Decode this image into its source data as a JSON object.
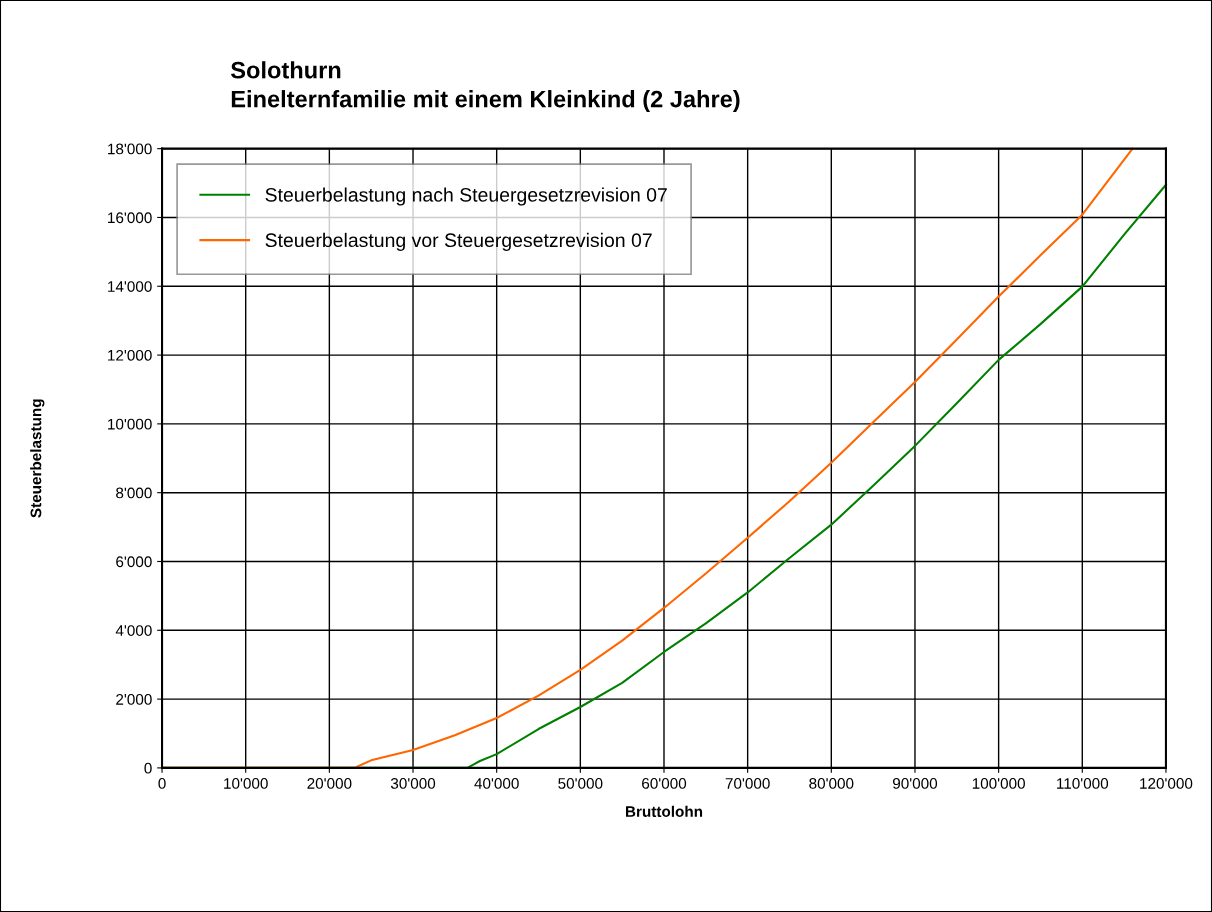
{
  "chart_data": {
    "type": "line",
    "title": "Solothurn\nEinelternfamilie mit einem Kleinkind (2 Jahre)",
    "xlabel": "Bruttolohn",
    "ylabel": "Steuerbelastung",
    "xlim": [
      0,
      120000
    ],
    "ylim": [
      0,
      18000
    ],
    "xticks": [
      0,
      {
        "value": 10000,
        "label": "10'000"
      },
      {
        "value": 20000,
        "label": "20'000"
      },
      {
        "value": 30000,
        "label": "30'000"
      },
      {
        "value": 40000,
        "label": "40'000"
      },
      {
        "value": 50000,
        "label": "50'000"
      },
      {
        "value": 60000,
        "label": "60'000"
      },
      {
        "value": 70000,
        "label": "70'000"
      },
      {
        "value": 80000,
        "label": "80'000"
      },
      {
        "value": 90000,
        "label": "90'000"
      },
      {
        "value": 100000,
        "label": "100'000"
      },
      {
        "value": 110000,
        "label": "110'000"
      },
      {
        "value": 120000,
        "label": "120'000"
      }
    ],
    "yticks": [
      0,
      {
        "value": 2000,
        "label": "2'000"
      },
      {
        "value": 4000,
        "label": "4'000"
      },
      {
        "value": 6000,
        "label": "6'000"
      },
      {
        "value": 8000,
        "label": "8'000"
      },
      {
        "value": 10000,
        "label": "10'000"
      },
      {
        "value": 12000,
        "label": "12'000"
      },
      {
        "value": 14000,
        "label": "14'000"
      },
      {
        "value": 16000,
        "label": "16'000"
      },
      {
        "value": 18000,
        "label": "18'000"
      }
    ],
    "grid": true,
    "legend": "top left",
    "marker": "none",
    "line_style": "solid",
    "series": [
      {
        "name": "Steuerbelastung nach Steuergesetzrevision 07",
        "color": "#008000",
        "x": [
          0,
          36500,
          38000,
          40000,
          45000,
          50000,
          55000,
          60000,
          65000,
          70000,
          75000,
          80000,
          85000,
          90000,
          95000,
          100000,
          105000,
          110000,
          115000,
          120000
        ],
        "values": [
          0,
          0,
          200,
          400,
          1130,
          1770,
          2470,
          3370,
          4200,
          5100,
          6100,
          7070,
          8200,
          9360,
          10600,
          11860,
          12900,
          13990,
          15500,
          16950
        ]
      },
      {
        "name": "Steuerbelastung vor Steuergesetzrevision 07",
        "color": "#ff6600",
        "x": [
          0,
          23000,
          25000,
          30000,
          35000,
          40000,
          45000,
          50000,
          55000,
          60000,
          65000,
          70000,
          75000,
          80000,
          85000,
          90000,
          95000,
          100000,
          105000,
          110000,
          116000
        ],
        "values": [
          0,
          0,
          220,
          520,
          950,
          1450,
          2100,
          2850,
          3700,
          4650,
          5650,
          6690,
          7750,
          8870,
          10050,
          11220,
          12450,
          13700,
          14900,
          16080,
          18000
        ]
      }
    ]
  }
}
